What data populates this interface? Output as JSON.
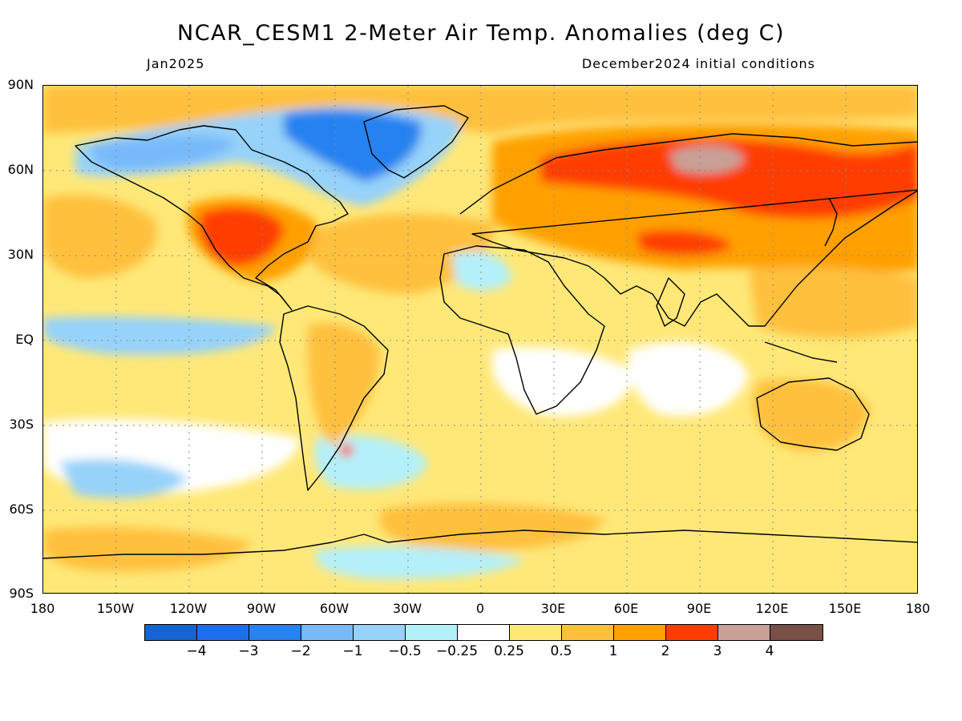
{
  "header": {
    "title": "NCAR_CESM1 2-Meter Air Temp. Anomalies (deg C)",
    "valid_month": "Jan2025",
    "initial_conditions": "December2024 initial conditions"
  },
  "axes": {
    "lat_labels": [
      "90N",
      "60N",
      "30N",
      "EQ",
      "30S",
      "60S",
      "90S"
    ],
    "lon_labels": [
      "180",
      "150W",
      "120W",
      "90W",
      "60W",
      "30W",
      "0",
      "30E",
      "60E",
      "90E",
      "120E",
      "150E",
      "180"
    ],
    "gridlines": "dotted"
  },
  "colorbar": {
    "colors": [
      "#1464d2",
      "#1e6eeb",
      "#2882f0",
      "#78b9fa",
      "#96d2fa",
      "#b4f0fa",
      "#ffffff",
      "#ffe878",
      "#ffc03c",
      "#ffa000",
      "#ff3c00",
      "#c8a096",
      "#785046"
    ],
    "labels": [
      "−4",
      "−3",
      "−2",
      "−1",
      "−0.5",
      "−0.25",
      "0.25",
      "0.5",
      "1",
      "2",
      "3",
      "4"
    ]
  },
  "map": {
    "variable": "2-meter air temperature anomaly",
    "units": "deg C",
    "projection": "equirectangular",
    "extent": {
      "lon": [
        -180,
        180
      ],
      "lat": [
        -90,
        90
      ]
    }
  }
}
